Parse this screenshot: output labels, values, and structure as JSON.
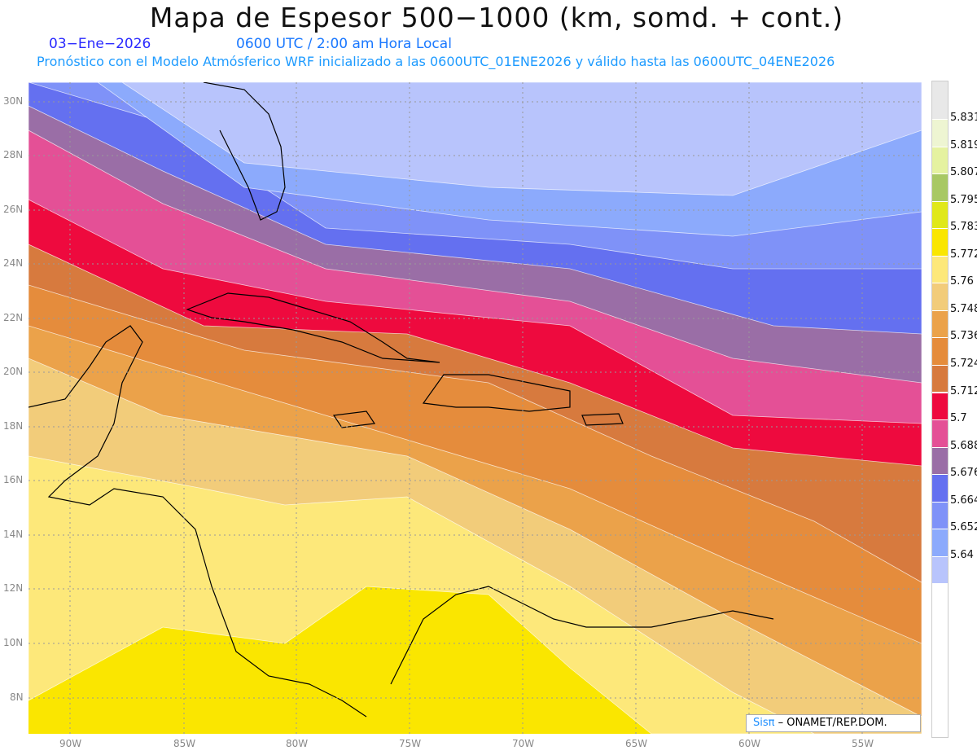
{
  "header": {
    "title": "Mapa de Espesor 500−1000 (km, somd. + cont.)",
    "date": "03−Ene−2026",
    "time": "0600 UTC / 2:00 am Hora Local",
    "subtitle": "Pronóstico con el Modelo Atmósferico WRF inicializado a las 0600UTC_01ENE2026 y válido hasta las  0600UTC_04ENE2026"
  },
  "axes": {
    "lon_labels": [
      "90W",
      "85W",
      "80W",
      "75W",
      "70W",
      "65W",
      "60W",
      "55W"
    ],
    "lat_labels": [
      "30N",
      "28N",
      "26N",
      "24N",
      "22N",
      "20N",
      "18N",
      "16N",
      "14N",
      "12N",
      "10N",
      "8N"
    ]
  },
  "colorbar": {
    "labels": [
      "5.831",
      "5.819",
      "5.807",
      "5.795",
      "5.783",
      "5.772",
      "5.76",
      "5.748",
      "5.736",
      "5.724",
      "5.712",
      "5.7",
      "5.688",
      "5.676",
      "5.664",
      "5.652",
      "5.64"
    ],
    "colors": [
      "#e8e8e8",
      "#eef5d2",
      "#e5f2a0",
      "#a8c864",
      "#e0e81a",
      "#fae600",
      "#fde87a",
      "#f2cc7a",
      "#eba24a",
      "#e58c3c",
      "#d77a3e",
      "#ee0a3e",
      "#e45096",
      "#9a6ea6",
      "#6470f0",
      "#7f92f8",
      "#8caafc",
      "#b8c4fc"
    ]
  },
  "credit": {
    "logo": "Sisπ",
    "text": " – ONAMET/REP.DOM."
  }
}
